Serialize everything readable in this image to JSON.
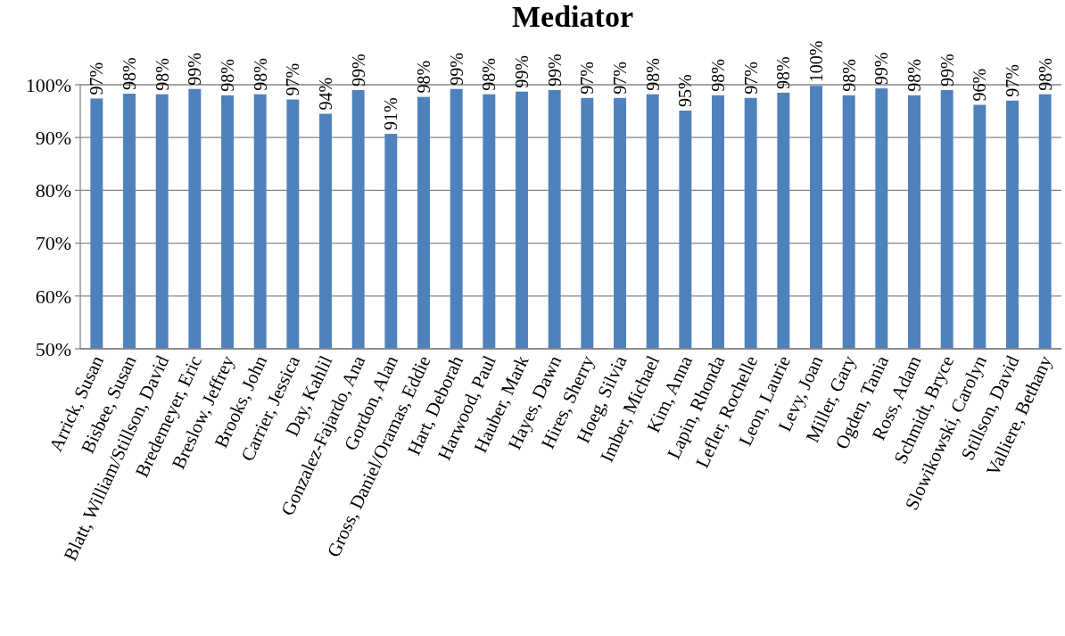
{
  "chart_data": {
    "type": "bar",
    "title": "Mediator",
    "categories": [
      "Arrick, Susan",
      "Bisbee, Susan",
      "Blatt, William/Stillson, David",
      "Bredemeyer, Eric",
      "Breslow, Jeffrey",
      "Brooks, John",
      "Carrier, Jessica",
      "Day, Kahlil",
      "Gonzalez-Fajardo, Ana",
      "Gordon, Alan",
      "Gross, Daniel/Oramas, Eddie",
      "Hart, Deborah",
      "Harwood, Paul",
      "Hauber, Mark",
      "Hayes, Dawn",
      "Hires, Sherry",
      "Hoeg, Silvia",
      "Imber, Michael",
      "Kim, Anna",
      "Lapin, Rhonda",
      "Lefler, Rochelle",
      "Leon, Laurie",
      "Levy, Joan",
      "Miller, Gary",
      "Ogden, Tania",
      "Ross, Adam",
      "Schmidt, Bryce",
      "Slowikowski, Carolyn",
      "Stillson, David",
      "Valliere, Bethany"
    ],
    "values": [
      97.4,
      98.3,
      98.2,
      99.2,
      98.0,
      98.2,
      97.2,
      94.5,
      99.0,
      90.7,
      97.7,
      99.2,
      98.2,
      98.7,
      99.0,
      97.5,
      97.5,
      98.2,
      95.1,
      98.0,
      97.5,
      98.5,
      99.8,
      98.0,
      99.3,
      98.0,
      99.0,
      96.2,
      97.0,
      98.2
    ],
    "value_labels": [
      "97%",
      "98%",
      "98%",
      "99%",
      "98%",
      "98%",
      "97%",
      "94%",
      "99%",
      "91%",
      "98%",
      "99%",
      "98%",
      "99%",
      "99%",
      "97%",
      "97%",
      "98%",
      "95%",
      "98%",
      "97%",
      "98%",
      "100%",
      "98%",
      "99%",
      "98%",
      "99%",
      "96%",
      "97%",
      "98%"
    ],
    "color": "#4f81bd",
    "ylim": [
      50,
      100
    ],
    "yticks": [
      {
        "value": 50,
        "label": "50%"
      },
      {
        "value": 60,
        "label": "60%"
      },
      {
        "value": 70,
        "label": "70%"
      },
      {
        "value": 80,
        "label": "80%"
      },
      {
        "value": 90,
        "label": "90%"
      },
      {
        "value": 100,
        "label": "100%"
      }
    ],
    "grid": "y"
  }
}
